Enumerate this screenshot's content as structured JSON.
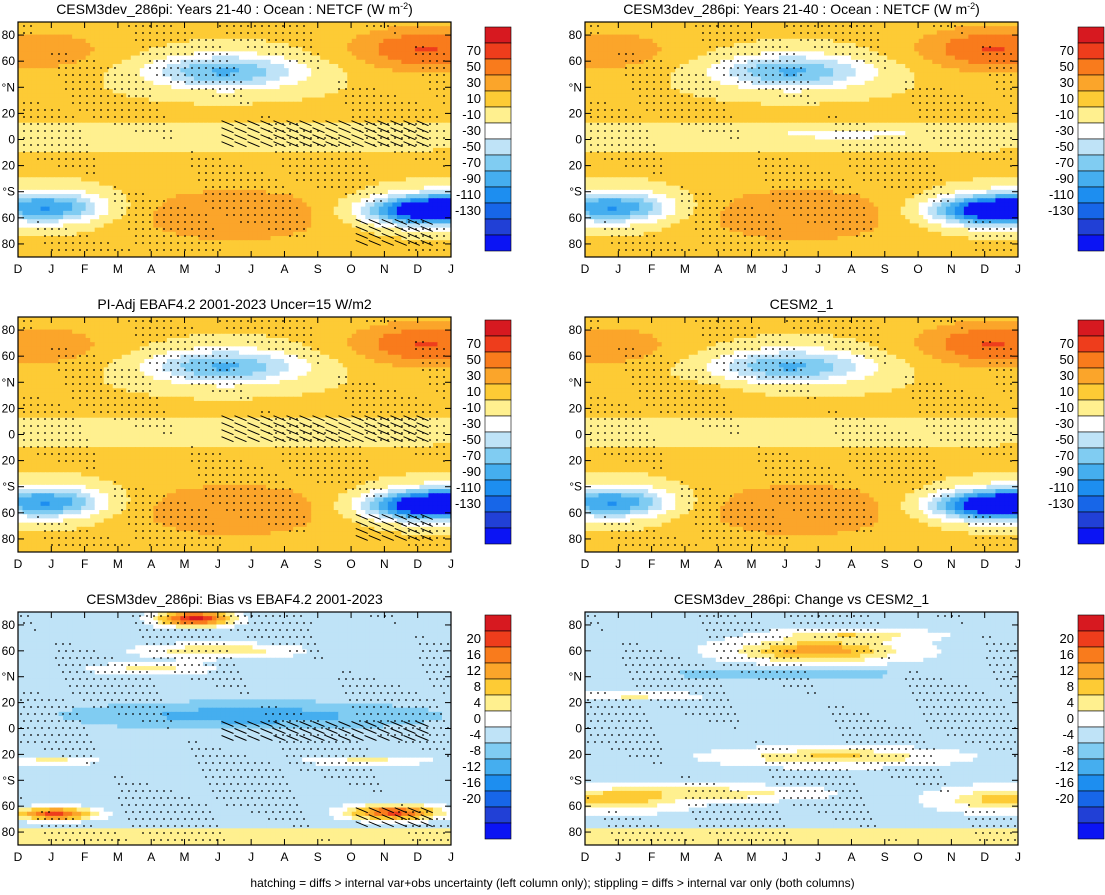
{
  "figure": {
    "caption": "hatching = diffs > internal var+obs uncertainty (left column only); stippling = diffs > internal var only (both columns)"
  },
  "axes": {
    "months": [
      "D",
      "J",
      "F",
      "M",
      "A",
      "M",
      "J",
      "J",
      "A",
      "S",
      "O",
      "N",
      "D",
      "J"
    ],
    "lat_ticks": [
      "80",
      "60",
      "°N",
      "20",
      "0",
      "20",
      "°S",
      "60",
      "80"
    ],
    "lat_tick_values": [
      80,
      60,
      40,
      20,
      0,
      -20,
      -40,
      -60,
      -80
    ],
    "ylim": [
      -90,
      90
    ]
  },
  "colors": {
    "netcf_levels": [
      "70",
      "50",
      "30",
      "10",
      "-10",
      "-30",
      "-50",
      "-70",
      "-90",
      "-110",
      "-130"
    ],
    "netcf_palette": [
      "#d71920",
      "#ee3d1c",
      "#f97b1c",
      "#fba52a",
      "#fdcb35",
      "#fff08f",
      "#ffffff",
      "#bfe3f7",
      "#80ccf2",
      "#45aeef",
      "#1d8ef0",
      "#1766e8",
      "#2140d6",
      "#0b14f4"
    ],
    "diff_levels": [
      "20",
      "16",
      "12",
      "8",
      "4",
      "0",
      "-4",
      "-8",
      "-12",
      "-16",
      "-20"
    ],
    "diff_palette": [
      "#d71920",
      "#ee3d1c",
      "#f97b1c",
      "#fba52a",
      "#fdcb35",
      "#fff08f",
      "#ffffff",
      "#bfe3f7",
      "#80ccf2",
      "#45aeef",
      "#1d8ef0",
      "#1766e8",
      "#2140d6",
      "#0b14f4"
    ]
  },
  "chart_data": [
    {
      "type": "heatmap",
      "title": "CESM3dev_286pi: Years 21-40 : Ocean : NETCF (W m",
      "title_sup": "-2",
      "title_end": ")",
      "xlabel": "",
      "ylabel": "",
      "colorbar_levels": [
        "70",
        "50",
        "30",
        "10",
        "-10",
        "-30",
        "-50",
        "-70",
        "-90",
        "-110",
        "-130"
      ],
      "approx_values_by_region": {
        "NH_mid_lat_summer_min": -70,
        "NH_winter_high_lat_max": 30,
        "SH_summer_min": -110,
        "SH_winter_max": 30,
        "tropics": -10
      },
      "stippling": true,
      "hatching": true
    },
    {
      "type": "heatmap",
      "title": "CESM3dev_286pi: Years 21-40 : Ocean : NETCF (W m",
      "title_sup": "-2",
      "title_end": ")",
      "xlabel": "",
      "ylabel": "",
      "colorbar_levels": [
        "70",
        "50",
        "30",
        "10",
        "-10",
        "-30",
        "-50",
        "-70",
        "-90",
        "-110",
        "-130"
      ],
      "approx_values_by_region": {
        "NH_mid_lat_summer_min": -70,
        "NH_winter_high_lat_max": 30,
        "SH_summer_min": -110,
        "SH_winter_max": 30,
        "tropics": -10
      },
      "stippling": true,
      "hatching": false
    },
    {
      "type": "heatmap",
      "title": "PI-Adj EBAF4.2 2001-2023 Uncer=15 W/m2",
      "xlabel": "",
      "ylabel": "",
      "colorbar_levels": [
        "70",
        "50",
        "30",
        "10",
        "-10",
        "-30",
        "-50",
        "-70",
        "-90",
        "-110",
        "-130"
      ],
      "approx_values_by_region": {
        "NH_mid_lat_summer_min": -70,
        "NH_winter_high_lat_max": 30,
        "SH_summer_min": -110,
        "SH_winter_max": 30,
        "tropics": -10
      },
      "stippling": true,
      "hatching": true
    },
    {
      "type": "heatmap",
      "title": "CESM2_1",
      "xlabel": "",
      "ylabel": "",
      "colorbar_levels": [
        "70",
        "50",
        "30",
        "10",
        "-10",
        "-30",
        "-50",
        "-70",
        "-90",
        "-110",
        "-130"
      ],
      "approx_values_by_region": {
        "NH_mid_lat_summer_min": -70,
        "NH_winter_high_lat_max": 30,
        "SH_summer_min": -110,
        "SH_winter_max": 30,
        "tropics": -10
      },
      "stippling": true,
      "hatching": false
    },
    {
      "type": "heatmap",
      "title": "CESM3dev_286pi: Bias vs EBAF4.2 2001-2023",
      "xlabel": "",
      "ylabel": "",
      "colorbar_levels": [
        "20",
        "16",
        "12",
        "8",
        "4",
        "0",
        "-4",
        "-8",
        "-12",
        "-16",
        "-20"
      ],
      "approx_values_by_region": {
        "NH_high_lat_may": 20,
        "SH_high_lat_oct_nov": 16,
        "broad_background": -8
      },
      "stippling": true,
      "hatching": true
    },
    {
      "type": "heatmap",
      "title": "CESM3dev_286pi: Change vs CESM2_1",
      "xlabel": "",
      "ylabel": "",
      "colorbar_levels": [
        "20",
        "16",
        "12",
        "8",
        "4",
        "0",
        "-4",
        "-8",
        "-12",
        "-16",
        "-20"
      ],
      "approx_values_by_region": {
        "NH_mid_lat_jul": 12,
        "SH_mid_lat_dec_jan": 10,
        "broad_background": -6
      },
      "stippling": true,
      "hatching": false
    }
  ]
}
